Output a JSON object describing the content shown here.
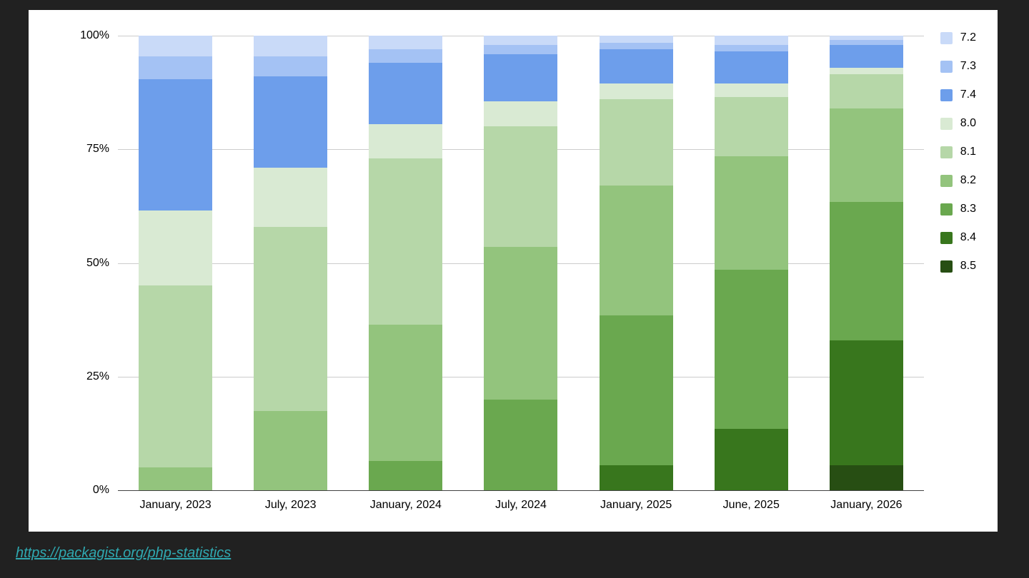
{
  "page": {
    "background_color": "#212121",
    "card_color": "#ffffff",
    "link": {
      "text": "https://packagist.org/php-statistics",
      "color": "#2fa8b0"
    }
  },
  "chart_data": {
    "type": "bar",
    "variant": "stacked-percent-column",
    "title": "",
    "xlabel": "",
    "ylabel": "",
    "ylim": [
      0,
      100
    ],
    "y_ticks": [
      {
        "pct": 0,
        "label": "0%"
      },
      {
        "pct": 25,
        "label": "25%"
      },
      {
        "pct": 50,
        "label": "50%"
      },
      {
        "pct": 75,
        "label": "75%"
      },
      {
        "pct": 100,
        "label": "100%"
      }
    ],
    "grid": true,
    "legend_position": "right",
    "categories": [
      "January, 2023",
      "July, 2023",
      "January, 2024",
      "July, 2024",
      "January, 2025",
      "June, 2025",
      "January, 2026"
    ],
    "stack_order_bottom_to_top": [
      "8.5",
      "8.4",
      "8.3",
      "8.2",
      "8.1",
      "8.0",
      "7.4",
      "7.3",
      "7.2"
    ],
    "series": [
      {
        "name": "7.2",
        "color": "#c9daf8",
        "values": [
          4.5,
          4.5,
          3.0,
          2.0,
          1.5,
          2.0,
          1.0
        ]
      },
      {
        "name": "7.3",
        "color": "#a4c2f4",
        "values": [
          5.0,
          4.5,
          3.0,
          2.0,
          1.5,
          1.5,
          1.0
        ]
      },
      {
        "name": "7.4",
        "color": "#6d9eeb",
        "values": [
          29.0,
          20.0,
          13.5,
          10.5,
          7.5,
          7.0,
          5.0
        ]
      },
      {
        "name": "8.0",
        "color": "#d9ead3",
        "values": [
          16.5,
          13.0,
          7.5,
          5.5,
          3.5,
          3.0,
          1.5
        ]
      },
      {
        "name": "8.1",
        "color": "#b6d7a8",
        "values": [
          40.0,
          40.5,
          36.5,
          26.5,
          19.0,
          13.0,
          7.5
        ]
      },
      {
        "name": "8.2",
        "color": "#93c47d",
        "values": [
          5.0,
          17.5,
          30.0,
          33.5,
          28.5,
          25.0,
          20.5
        ]
      },
      {
        "name": "8.3",
        "color": "#6aa84f",
        "values": [
          0,
          0,
          6.5,
          20.0,
          33.0,
          35.0,
          30.5
        ]
      },
      {
        "name": "8.4",
        "color": "#38761d",
        "values": [
          0,
          0,
          0,
          0,
          5.5,
          13.5,
          27.5
        ]
      },
      {
        "name": "8.5",
        "color": "#274e13",
        "values": [
          0,
          0,
          0,
          0,
          0,
          0,
          5.5
        ]
      }
    ]
  }
}
